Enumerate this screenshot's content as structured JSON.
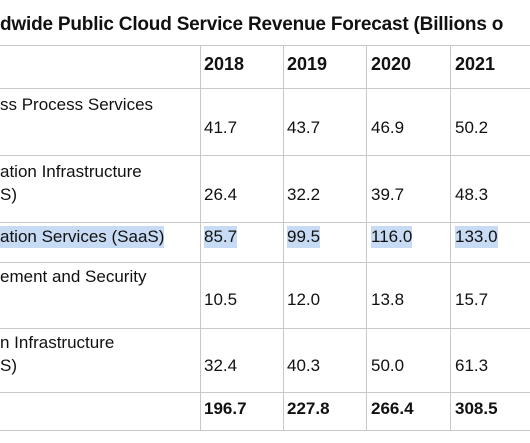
{
  "title": "dwide Public Cloud Service Revenue Forecast (Billions o",
  "table": {
    "header": [
      "2018",
      "2019",
      "2020",
      "2021"
    ],
    "rows": [
      {
        "label": [
          "ss Process Services"
        ],
        "values": [
          "41.7",
          "43.7",
          "46.9",
          "50.2"
        ]
      },
      {
        "label": [
          "ation Infrastructure",
          "S)"
        ],
        "values": [
          "26.4",
          "32.2",
          "39.7",
          "48.3"
        ]
      },
      {
        "label": [
          "ation Services (SaaS)"
        ],
        "values": [
          "85.7",
          "99.5",
          "116.0",
          "133.0"
        ]
      },
      {
        "label": [
          "ement and Security"
        ],
        "values": [
          "10.5",
          "12.0",
          "13.8",
          "15.7"
        ]
      },
      {
        "label": [
          "n Infrastructure",
          "S)"
        ],
        "values": [
          "32.4",
          "40.3",
          "50.0",
          "61.3"
        ]
      }
    ],
    "total": [
      "196.7",
      "227.8",
      "266.4",
      "308.5"
    ]
  }
}
